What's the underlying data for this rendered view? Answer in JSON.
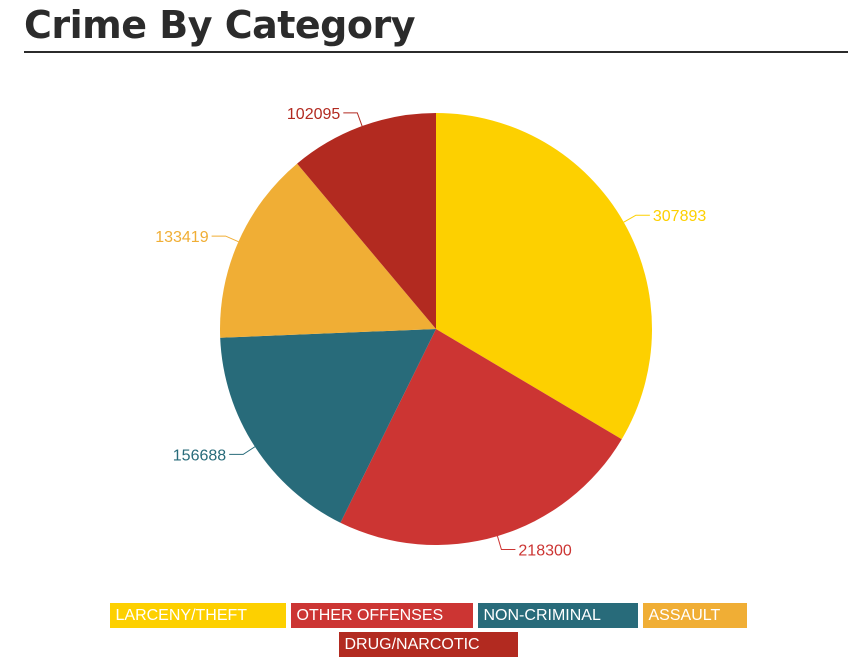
{
  "page": {
    "title": "Crime By Category"
  },
  "chart_data": {
    "type": "pie",
    "title": "",
    "slices": [
      {
        "label": "LARCENY/THEFT",
        "value": 307893,
        "color": "#fdd000"
      },
      {
        "label": "OTHER OFFENSES",
        "value": 218300,
        "color": "#cc3533"
      },
      {
        "label": "NON-CRIMINAL",
        "value": 156688,
        "color": "#286b7a"
      },
      {
        "label": "ASSAULT",
        "value": 133419,
        "color": "#f0ae35"
      },
      {
        "label": "DRUG/NARCOTIC",
        "value": 102095,
        "color": "#b22a20"
      }
    ],
    "legend": {
      "position": "bottom",
      "rows": [
        [
          {
            "label": "LARCENY/THEFT",
            "color": "#fdd000"
          },
          {
            "label": "OTHER OFFENSES",
            "color": "#cc3533"
          },
          {
            "label": "NON-CRIMINAL",
            "color": "#286b7a"
          },
          {
            "label": "ASSAULT",
            "color": "#f0ae35"
          }
        ],
        [
          {
            "label": "DRUG/NARCOTIC",
            "color": "#b22a20"
          }
        ]
      ]
    },
    "start_angle_deg": 0,
    "direction": "clockwise"
  }
}
